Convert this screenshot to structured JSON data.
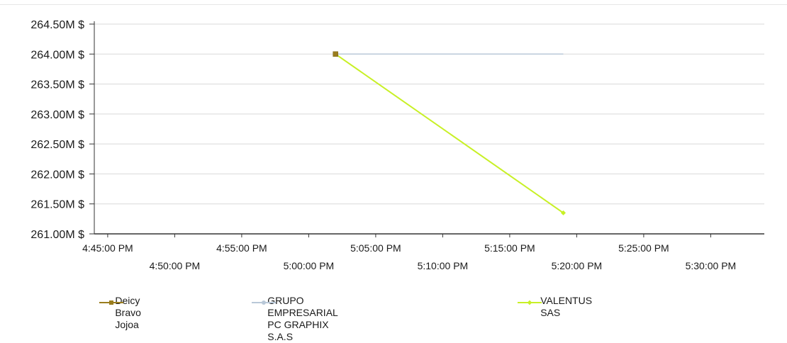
{
  "chart_data": {
    "type": "line",
    "y_tick_labels": [
      "264.50M $",
      "264.00M $",
      "263.50M $",
      "263.00M $",
      "262.50M $",
      "262.00M $",
      "261.50M $",
      "261.00M $"
    ],
    "y_ticks": [
      264.5,
      264.0,
      263.5,
      263.0,
      262.5,
      262.0,
      261.5,
      261.0
    ],
    "ylim": [
      261.0,
      264.5
    ],
    "x_tick_labels": [
      "4:45:00 PM",
      "4:50:00 PM",
      "4:55:00 PM",
      "5:00:00 PM",
      "5:05:00 PM",
      "5:10:00 PM",
      "5:15:00 PM",
      "5:20:00 PM",
      "5:25:00 PM",
      "5:30:00 PM"
    ],
    "x_ticks": [
      "16:45",
      "16:50",
      "16:55",
      "17:00",
      "17:05",
      "17:10",
      "17:15",
      "17:20",
      "17:25",
      "17:30"
    ],
    "xlim": [
      "16:44",
      "17:34"
    ],
    "grid": "horizontal",
    "legend_position": "bottom",
    "series": [
      {
        "name": "Deicy Bravo Jojoa",
        "color": "#9a7d1e",
        "marker": "square",
        "x": [
          "17:02"
        ],
        "values": [
          264.0
        ]
      },
      {
        "name": "GRUPO EMPRESARIAL PC GRAPHIX\nS.A.S",
        "color": "#b9c8d8",
        "marker": "circle",
        "x": [
          "17:02",
          "17:19"
        ],
        "values": [
          264.0,
          264.0
        ]
      },
      {
        "name": "VALENTUS  SAS",
        "color": "#c8f026",
        "marker": "diamond",
        "x": [
          "17:02",
          "17:19"
        ],
        "values": [
          264.0,
          261.35
        ]
      }
    ]
  }
}
